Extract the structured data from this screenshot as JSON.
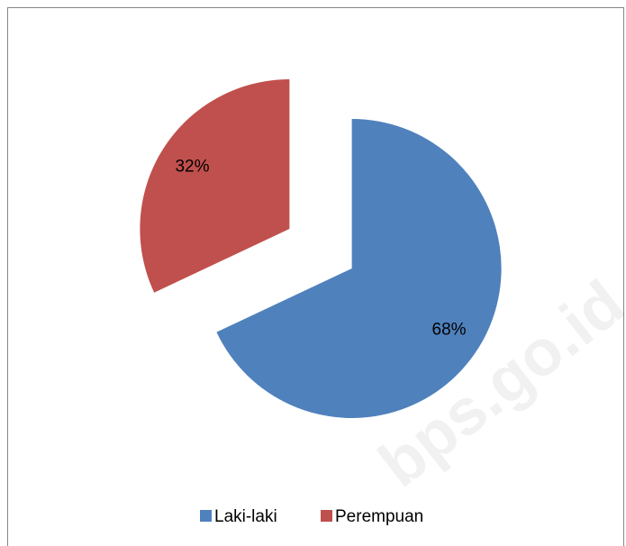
{
  "chart_data": {
    "type": "pie",
    "categories": [
      "Laki-laki",
      "Perempuan"
    ],
    "values": [
      68,
      32
    ],
    "value_labels": [
      "68%",
      "32%"
    ],
    "colors": [
      "#4f81bd",
      "#c0504d"
    ],
    "exploded": true,
    "legend": "bottom",
    "watermark": "bps.go.id"
  }
}
